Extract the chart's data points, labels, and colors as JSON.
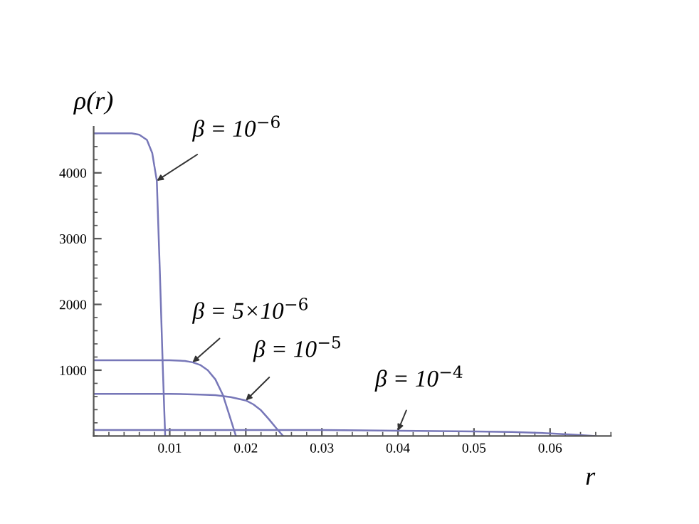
{
  "chart_data": {
    "type": "line",
    "xlabel": "r",
    "ylabel": "ρ(r)",
    "xlim": [
      0,
      0.068
    ],
    "ylim": [
      0,
      4700
    ],
    "xticks": [
      0.01,
      0.02,
      0.03,
      0.04,
      0.05,
      0.06
    ],
    "yticks": [
      1000,
      2000,
      3000,
      4000
    ],
    "grid": false,
    "marker": "none",
    "line_style": "solid",
    "series": [
      {
        "color": "#7777b8",
        "x": [
          0,
          0.005,
          0.006,
          0.007,
          0.0077,
          0.0083,
          0.0087,
          0.0091,
          0.0094
        ],
        "values": [
          4600,
          4600,
          4580,
          4500,
          4300,
          3880,
          2500,
          1000,
          0
        ]
      },
      {
        "color": "#7777b8",
        "x": [
          0,
          0.01,
          0.012,
          0.013,
          0.014,
          0.015,
          0.016,
          0.017,
          0.0178,
          0.0187
        ],
        "values": [
          1150,
          1150,
          1140,
          1120,
          1080,
          1000,
          860,
          620,
          330,
          0
        ]
      },
      {
        "color": "#7777b8",
        "x": [
          0,
          0.01,
          0.014,
          0.016,
          0.018,
          0.02,
          0.021,
          0.022,
          0.023,
          0.024,
          0.0249
        ],
        "values": [
          640,
          640,
          630,
          620,
          590,
          540,
          480,
          390,
          260,
          120,
          0
        ]
      },
      {
        "color": "#7777b8",
        "x": [
          0,
          0.02,
          0.03,
          0.04,
          0.05,
          0.055,
          0.06,
          0.063,
          0.066
        ],
        "values": [
          90,
          90,
          90,
          80,
          70,
          60,
          40,
          20,
          0
        ]
      }
    ],
    "annotations": [
      {
        "text": "β = 10$^{−6}$",
        "x": 0.0083,
        "y": 3880
      },
      {
        "text": "β = 5×10$^{−6}$",
        "x": 0.013,
        "y": 1120
      },
      {
        "text": "β = 10$^{−5}$",
        "x": 0.02,
        "y": 540
      },
      {
        "text": "β = 10$^{−4}$",
        "x": 0.04,
        "y": 80
      }
    ]
  }
}
